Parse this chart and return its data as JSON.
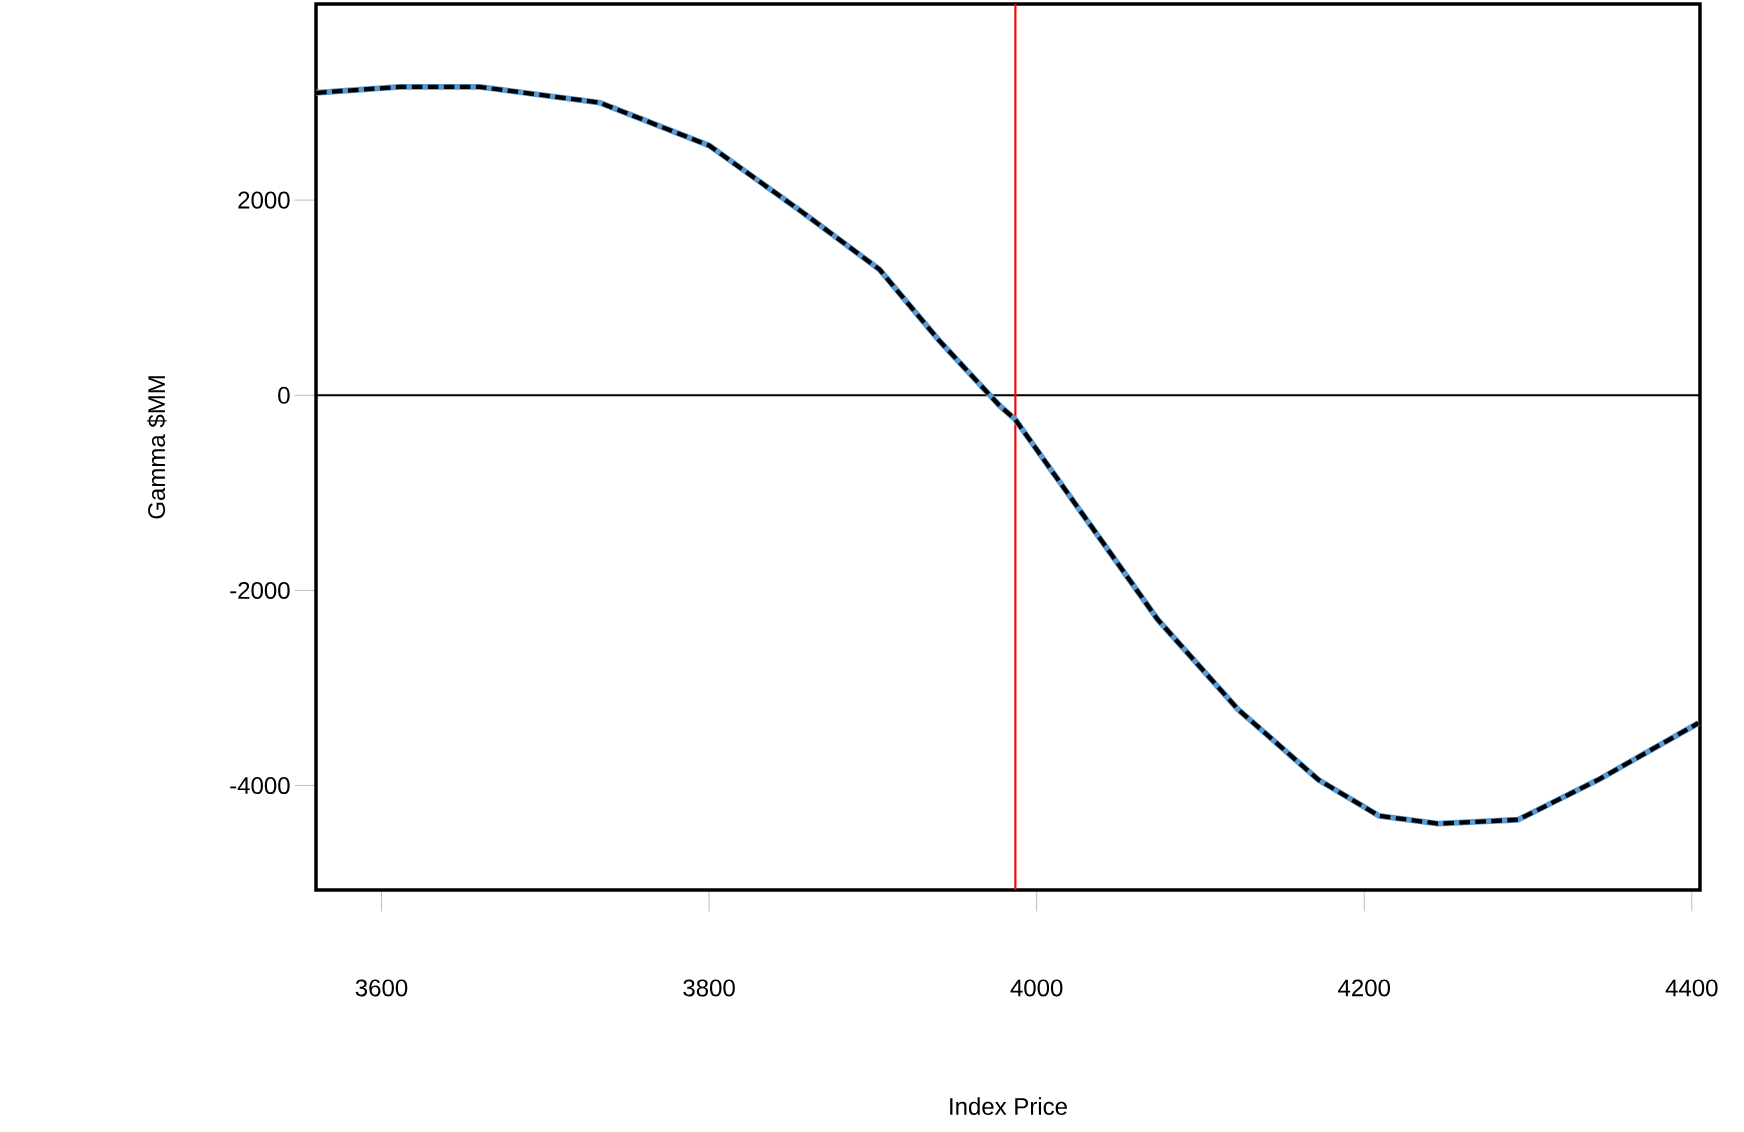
{
  "chart_data": {
    "type": "line",
    "xlabel": "Index Price",
    "ylabel": "Gamma $MM",
    "x": [
      3560,
      3611,
      3660,
      3733,
      3800,
      3855,
      3904,
      3940,
      3977,
      3987,
      4026,
      4074,
      4123,
      4172,
      4209,
      4245,
      4294,
      4343,
      4404
    ],
    "series": [
      {
        "color": "#5b9bd5",
        "line_style": "solid",
        "values": [
          3100,
          3160,
          3160,
          3000,
          2560,
          1900,
          1290,
          570,
          -100,
          -250,
          -1170,
          -2300,
          -3220,
          -3940,
          -4310,
          -4390,
          -4350,
          -3940,
          -3360
        ]
      },
      {
        "color": "#000000",
        "line_style": "dashed",
        "values": [
          3100,
          3160,
          3160,
          3000,
          2560,
          1900,
          1290,
          570,
          -100,
          -250,
          -1170,
          -2300,
          -3220,
          -3940,
          -4310,
          -4390,
          -4350,
          -3940,
          -3360
        ]
      }
    ],
    "xlim": [
      3560,
      4405
    ],
    "ylim": [
      -5070,
      4010
    ],
    "xticks": [
      3600,
      3800,
      4000,
      4200,
      4400
    ],
    "yticks": [
      -4000,
      -2000,
      0,
      2000
    ],
    "ref_lines": [
      {
        "axis": "y",
        "value": 0,
        "color": "#000000"
      },
      {
        "axis": "x",
        "value": 3987,
        "color": "#ff0000"
      }
    ]
  }
}
